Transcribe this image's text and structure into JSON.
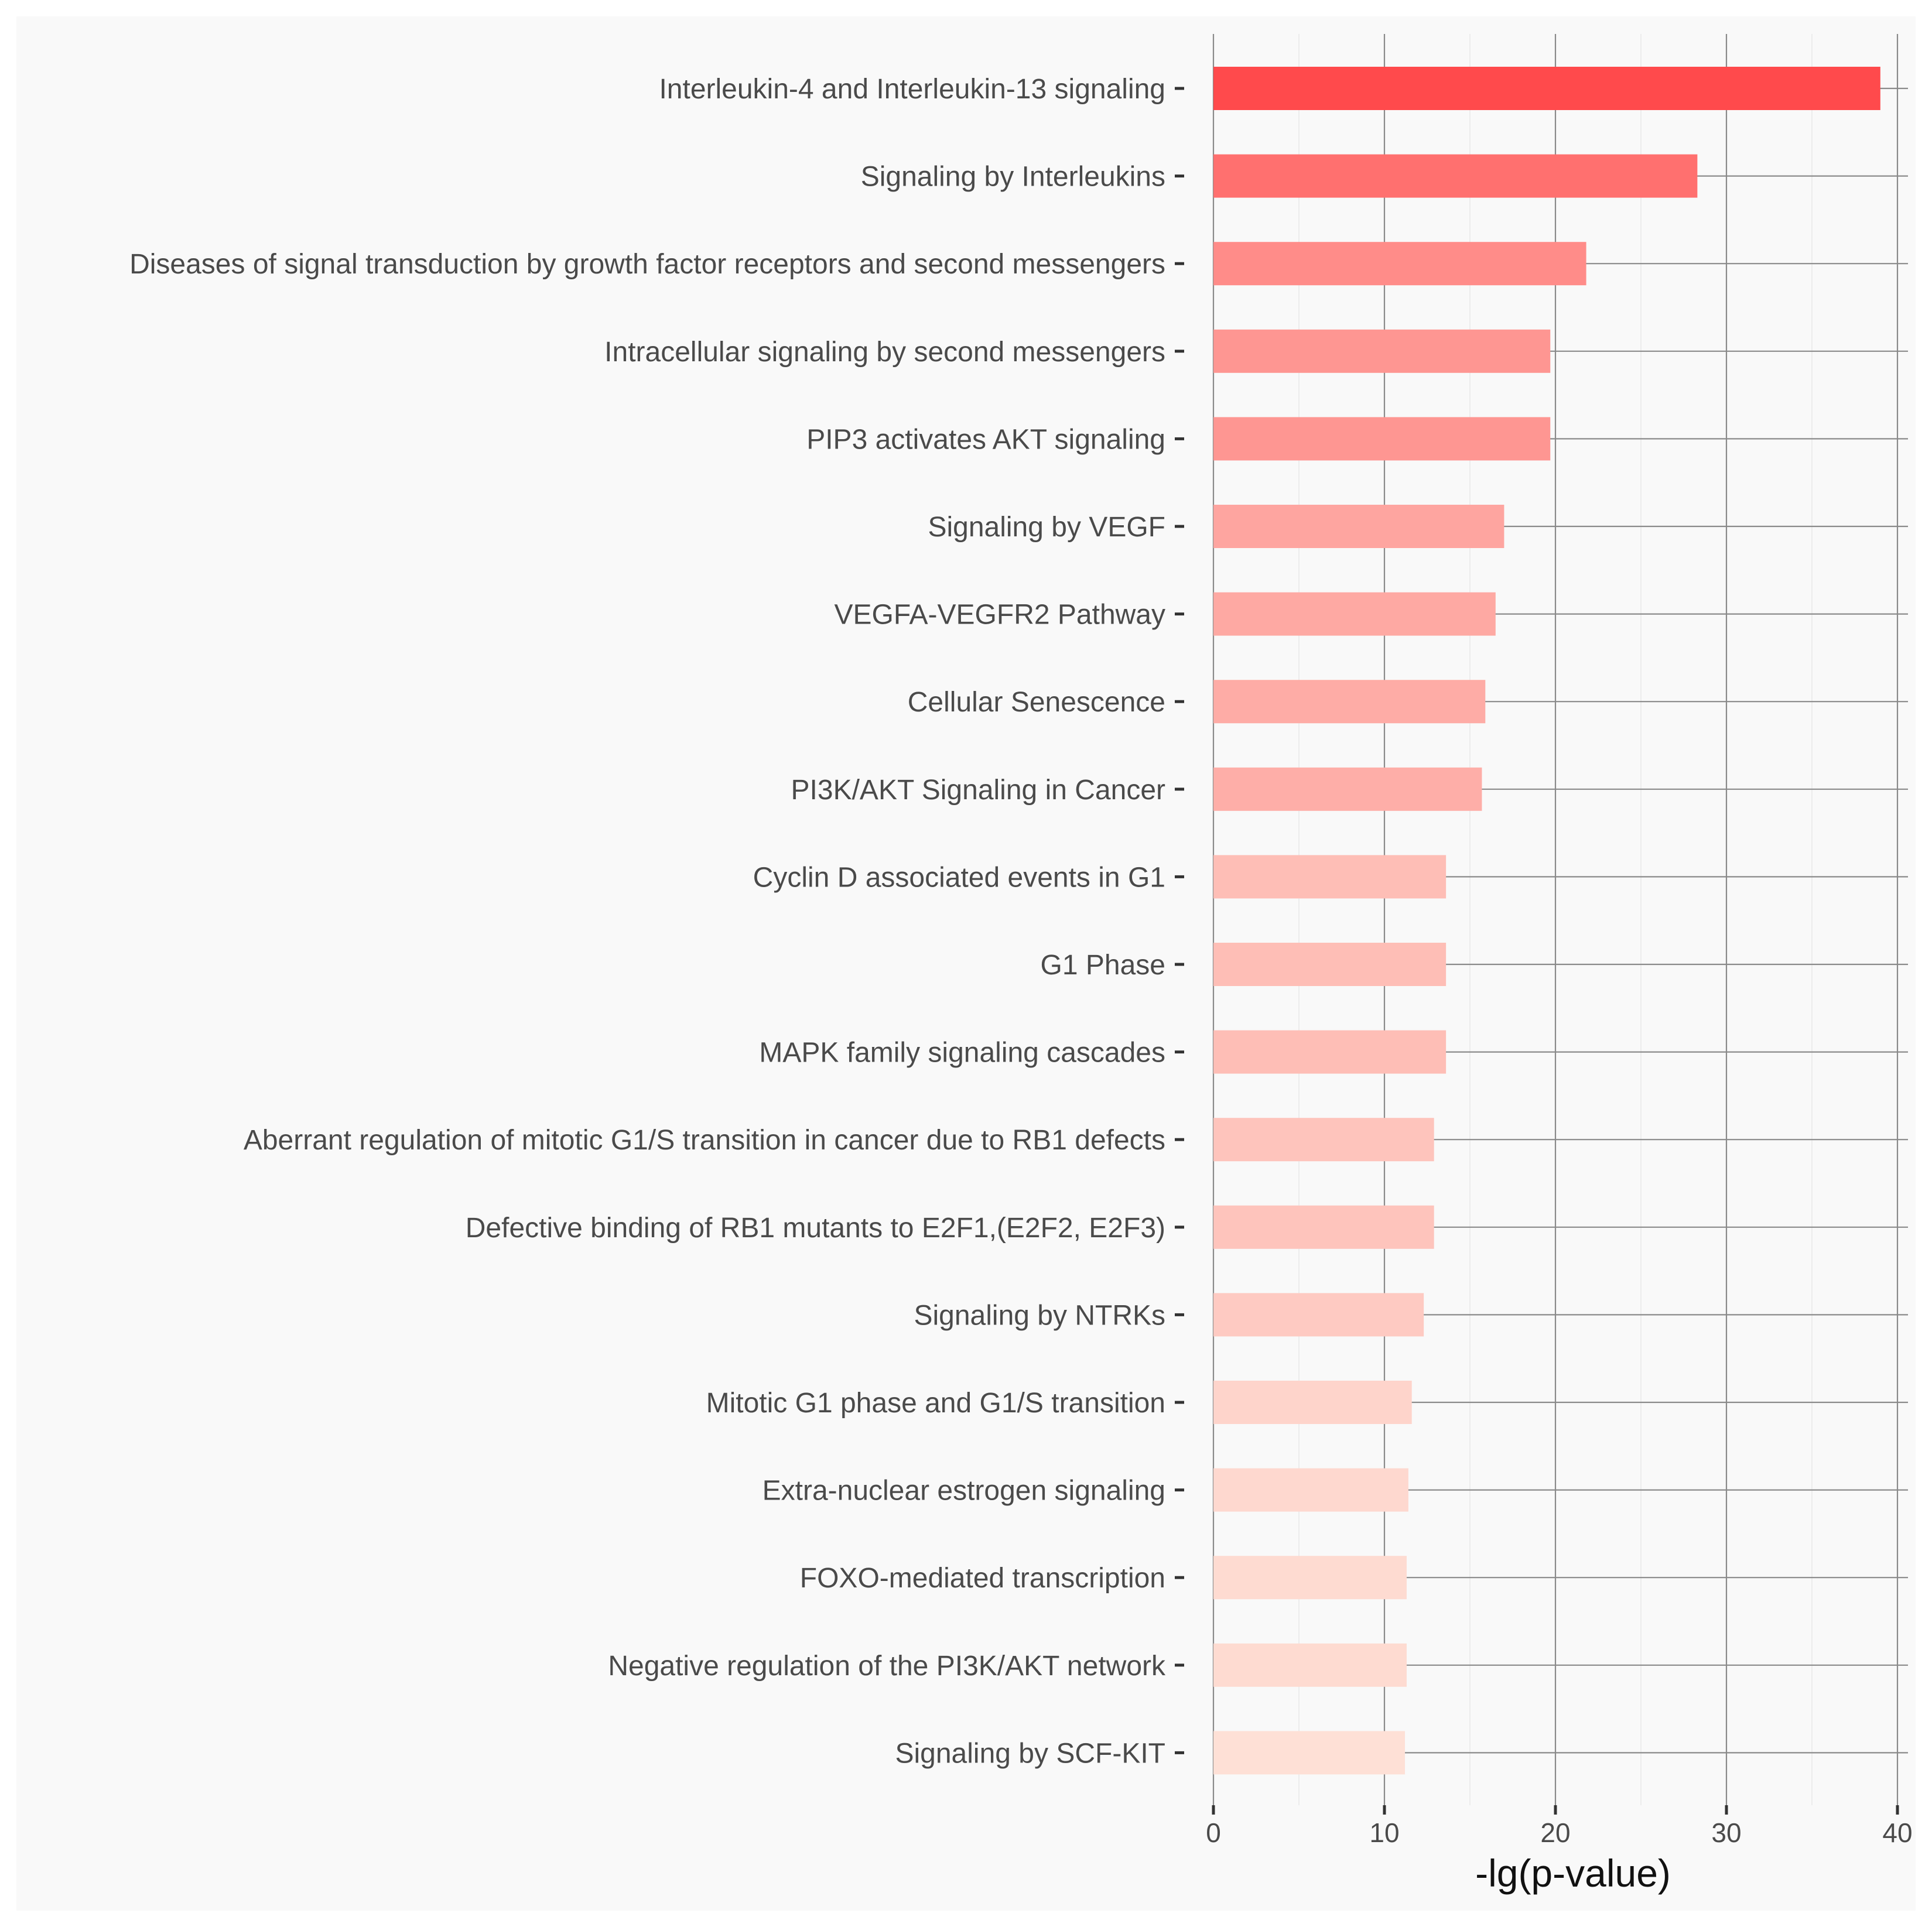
{
  "chart_data": {
    "type": "bar",
    "orientation": "horizontal",
    "title": "",
    "xlabel": "-lg(p-value)",
    "ylabel": "",
    "xlim": [
      0,
      40
    ],
    "xticks": [
      0,
      10,
      20,
      30,
      40
    ],
    "grid": true,
    "legend": "none",
    "categories": [
      "Interleukin-4 and Interleukin-13 signaling",
      "Signaling by Interleukins",
      "Diseases of signal transduction by growth factor receptors and second messengers",
      "Intracellular signaling by second messengers",
      "PIP3 activates AKT signaling",
      "Signaling by VEGF",
      "VEGFA-VEGFR2 Pathway",
      "Cellular Senescence",
      "PI3K/AKT Signaling in Cancer",
      "Cyclin D associated events in G1",
      "G1 Phase",
      "MAPK family signaling cascades",
      "Aberrant regulation of mitotic G1/S transition in cancer due to RB1 defects",
      "Defective binding of RB1 mutants to E2F1,(E2F2, E2F3)",
      "Signaling by NTRKs",
      "Mitotic G1 phase and G1/S transition",
      "Extra-nuclear estrogen signaling",
      "FOXO-mediated transcription",
      "Negative regulation of the PI3K/AKT network",
      "Signaling by SCF-KIT"
    ],
    "values": [
      39.0,
      28.3,
      21.8,
      19.7,
      19.7,
      17.0,
      16.5,
      15.9,
      15.7,
      13.6,
      13.6,
      13.6,
      12.9,
      12.9,
      12.3,
      11.6,
      11.4,
      11.3,
      11.3,
      11.2
    ],
    "colors": {
      "high": "#ff4a4c",
      "low": "#fee0d6",
      "panel_background": "#f9f9f9",
      "grid": "#8a8a8a"
    }
  }
}
